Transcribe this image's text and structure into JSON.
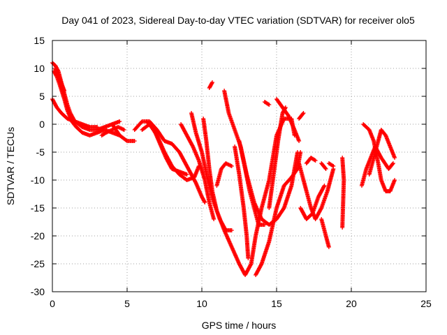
{
  "chart_data": {
    "type": "scatter",
    "title": "Day 041 of 2023, Sidereal Day-to-day VTEC variation (SDTVAR) for receiver olo5",
    "xlabel": "GPS time / hours",
    "ylabel": "SDTVAR / TECUs",
    "xlim": [
      0,
      25
    ],
    "ylim": [
      -30,
      15
    ],
    "xticks": [
      "0",
      "5",
      "10",
      "15",
      "20",
      "25"
    ],
    "yticks": [
      "-30",
      "-25",
      "-20",
      "-15",
      "-10",
      "-5",
      "0",
      "5",
      "10",
      "15"
    ],
    "grid": true,
    "marker": "plus",
    "color": "#ff0000",
    "series": [
      {
        "name": "trace-1",
        "points": [
          [
            0.0,
            11
          ],
          [
            0.2,
            10.5
          ],
          [
            0.4,
            9.5
          ],
          [
            0.6,
            7.5
          ],
          [
            0.8,
            5.5
          ],
          [
            1.0,
            3.5
          ],
          [
            1.2,
            2
          ],
          [
            1.5,
            0.5
          ],
          [
            2.0,
            -0.5
          ],
          [
            2.5,
            -1
          ],
          [
            3.0,
            -1
          ],
          [
            3.5,
            -0.5
          ],
          [
            4.0,
            0
          ],
          [
            4.5,
            0.5
          ]
        ]
      },
      {
        "name": "trace-2",
        "points": [
          [
            0.1,
            9.5
          ],
          [
            0.3,
            8.5
          ],
          [
            0.5,
            7
          ],
          [
            0.8,
            4.5
          ],
          [
            1.0,
            2.5
          ],
          [
            1.3,
            0.5
          ],
          [
            1.6,
            -0.5
          ],
          [
            2.0,
            -1.5
          ],
          [
            2.5,
            -2
          ],
          [
            3.0,
            -1.5
          ],
          [
            3.5,
            -1
          ],
          [
            4.0,
            -1.5
          ],
          [
            4.5,
            -2
          ]
        ]
      },
      {
        "name": "trace-3",
        "points": [
          [
            0.0,
            4.5
          ],
          [
            0.3,
            3
          ],
          [
            0.6,
            2
          ],
          [
            1.0,
            1
          ],
          [
            1.5,
            0.5
          ],
          [
            2.0,
            0
          ],
          [
            2.5,
            -0.5
          ],
          [
            3.0,
            -0.5
          ]
        ]
      },
      {
        "name": "trace-4",
        "points": [
          [
            0.2,
            10
          ],
          [
            0.5,
            8
          ],
          [
            0.8,
            6
          ]
        ]
      },
      {
        "name": "trace-5",
        "points": [
          [
            3.3,
            -2
          ],
          [
            3.6,
            -1.5
          ],
          [
            4.0,
            -1
          ],
          [
            4.4,
            -0.5
          ],
          [
            4.8,
            -1
          ]
        ]
      },
      {
        "name": "trace-6",
        "points": [
          [
            4.0,
            0
          ],
          [
            4.5,
            -2
          ],
          [
            5.0,
            -3
          ],
          [
            5.5,
            -3
          ]
        ]
      },
      {
        "name": "trace-7",
        "points": [
          [
            5.5,
            -1
          ],
          [
            6.0,
            0.5
          ],
          [
            6.5,
            0.5
          ],
          [
            7.0,
            -1
          ],
          [
            7.5,
            -3
          ],
          [
            8.0,
            -3.5
          ],
          [
            8.5,
            -5
          ],
          [
            9.0,
            -7.5
          ],
          [
            9.3,
            -9
          ],
          [
            9.6,
            -10.5
          ],
          [
            10.0,
            -13
          ],
          [
            10.2,
            -14
          ]
        ]
      },
      {
        "name": "trace-8",
        "points": [
          [
            6.0,
            -1
          ],
          [
            6.5,
            0
          ],
          [
            7.0,
            -2
          ],
          [
            7.5,
            -5
          ],
          [
            8.0,
            -7.5
          ],
          [
            8.5,
            -9
          ],
          [
            9.0,
            -10
          ],
          [
            9.5,
            -9.5
          ],
          [
            9.8,
            -7.5
          ]
        ]
      },
      {
        "name": "trace-9",
        "points": [
          [
            6.3,
            0.5
          ],
          [
            6.8,
            -1
          ],
          [
            7.2,
            -3.5
          ],
          [
            7.6,
            -6
          ],
          [
            8.0,
            -8
          ],
          [
            8.5,
            -8.5
          ],
          [
            9.0,
            -9
          ]
        ]
      },
      {
        "name": "trace-10",
        "points": [
          [
            8.6,
            0
          ],
          [
            9.0,
            -2
          ],
          [
            9.4,
            -4
          ],
          [
            9.8,
            -6.5
          ],
          [
            10.2,
            -10
          ],
          [
            10.5,
            -14
          ],
          [
            10.8,
            -17
          ]
        ]
      },
      {
        "name": "trace-11",
        "points": [
          [
            9.3,
            2
          ],
          [
            9.6,
            -1.5
          ],
          [
            10.0,
            -5
          ],
          [
            10.4,
            -10
          ],
          [
            10.8,
            -14
          ],
          [
            11.2,
            -17
          ],
          [
            11.6,
            -19
          ],
          [
            12.0,
            -19
          ]
        ]
      },
      {
        "name": "trace-12",
        "points": [
          [
            10.1,
            1
          ],
          [
            10.3,
            -3
          ],
          [
            10.5,
            -8
          ],
          [
            10.7,
            -12
          ],
          [
            11.0,
            -15.5
          ],
          [
            11.5,
            -19
          ],
          [
            12.0,
            -22
          ],
          [
            12.5,
            -25
          ],
          [
            12.9,
            -27
          ],
          [
            13.3,
            -25
          ],
          [
            13.6,
            -20
          ],
          [
            14.0,
            -15
          ],
          [
            14.5,
            -10
          ],
          [
            15.0,
            -2
          ],
          [
            15.5,
            1
          ],
          [
            16.0,
            1
          ],
          [
            16.2,
            -2
          ]
        ]
      },
      {
        "name": "trace-13",
        "points": [
          [
            10.5,
            6.5
          ],
          [
            10.7,
            7.5
          ]
        ]
      },
      {
        "name": "trace-14",
        "points": [
          [
            11.0,
            -11
          ],
          [
            11.3,
            -8
          ],
          [
            11.6,
            -7
          ],
          [
            12.0,
            -7.5
          ]
        ]
      },
      {
        "name": "trace-15",
        "points": [
          [
            11.5,
            6
          ],
          [
            11.8,
            2
          ],
          [
            12.2,
            -1
          ],
          [
            12.6,
            -4
          ],
          [
            13.0,
            -9
          ],
          [
            13.5,
            -14
          ],
          [
            14.0,
            -17
          ],
          [
            14.5,
            -18
          ],
          [
            15.0,
            -17
          ],
          [
            15.5,
            -15
          ],
          [
            16.0,
            -11
          ],
          [
            16.4,
            -5
          ]
        ]
      },
      {
        "name": "trace-16",
        "points": [
          [
            12.2,
            -4
          ],
          [
            12.5,
            -9
          ],
          [
            12.8,
            -15
          ],
          [
            13.0,
            -20
          ],
          [
            13.1,
            -24
          ]
        ]
      },
      {
        "name": "trace-17",
        "points": [
          [
            12.5,
            -3
          ],
          [
            12.9,
            -8
          ],
          [
            13.2,
            -12
          ],
          [
            13.5,
            -15
          ],
          [
            13.8,
            -18
          ],
          [
            14.2,
            -18
          ]
        ]
      },
      {
        "name": "trace-18",
        "points": [
          [
            13.6,
            -27
          ],
          [
            14.0,
            -25
          ],
          [
            14.5,
            -21
          ],
          [
            15.0,
            -15
          ],
          [
            15.5,
            -11
          ],
          [
            16.0,
            -9.5
          ],
          [
            16.4,
            -8
          ],
          [
            16.6,
            -5
          ]
        ]
      },
      {
        "name": "trace-19",
        "points": [
          [
            14.5,
            -15
          ],
          [
            14.8,
            -9
          ],
          [
            15.1,
            -3
          ],
          [
            15.4,
            2
          ],
          [
            15.6,
            3
          ]
        ]
      },
      {
        "name": "trace-20",
        "points": [
          [
            15.0,
            4.5
          ],
          [
            15.4,
            3
          ],
          [
            15.8,
            1.5
          ],
          [
            16.2,
            -1
          ],
          [
            16.5,
            -3
          ]
        ]
      },
      {
        "name": "trace-21",
        "points": [
          [
            14.2,
            4
          ],
          [
            14.5,
            3.5
          ]
        ]
      },
      {
        "name": "trace-22",
        "points": [
          [
            16.5,
            1
          ],
          [
            16.8,
            2
          ]
        ]
      },
      {
        "name": "trace-23",
        "points": [
          [
            16.5,
            -7
          ],
          [
            16.8,
            -10
          ],
          [
            17.0,
            -12
          ],
          [
            17.3,
            -15
          ],
          [
            17.6,
            -17
          ],
          [
            18.0,
            -15
          ],
          [
            18.4,
            -12
          ],
          [
            18.6,
            -10
          ],
          [
            18.8,
            -8
          ]
        ]
      },
      {
        "name": "trace-24",
        "points": [
          [
            16.6,
            -15
          ],
          [
            17.0,
            -17
          ],
          [
            17.4,
            -16
          ],
          [
            17.8,
            -13
          ],
          [
            18.2,
            -11
          ]
        ]
      },
      {
        "name": "trace-25",
        "points": [
          [
            17.0,
            -7
          ],
          [
            17.3,
            -6
          ],
          [
            17.6,
            -6.5
          ]
        ]
      },
      {
        "name": "trace-26",
        "points": [
          [
            18.0,
            -17
          ],
          [
            18.3,
            -20
          ],
          [
            18.5,
            -22
          ]
        ]
      },
      {
        "name": "trace-27",
        "points": [
          [
            18.5,
            -7
          ],
          [
            18.8,
            -7.5
          ]
        ]
      },
      {
        "name": "trace-28",
        "points": [
          [
            18.0,
            -7
          ],
          [
            18.3,
            -8
          ]
        ]
      },
      {
        "name": "trace-29",
        "points": [
          [
            19.4,
            -6
          ],
          [
            19.5,
            -10
          ],
          [
            19.4,
            -18.5
          ]
        ]
      },
      {
        "name": "trace-30",
        "points": [
          [
            20.7,
            -11
          ],
          [
            21.0,
            -8
          ],
          [
            21.3,
            -6
          ],
          [
            21.6,
            -4
          ],
          [
            22.0,
            -6
          ],
          [
            22.5,
            -8
          ],
          [
            22.8,
            -7
          ]
        ]
      },
      {
        "name": "trace-31",
        "points": [
          [
            20.8,
            0
          ],
          [
            21.2,
            -1
          ],
          [
            21.5,
            -3
          ],
          [
            21.8,
            -7
          ],
          [
            22.0,
            -10
          ],
          [
            22.3,
            -12
          ],
          [
            22.6,
            -12
          ],
          [
            22.9,
            -10
          ]
        ]
      },
      {
        "name": "trace-32",
        "points": [
          [
            21.2,
            -9
          ],
          [
            21.5,
            -6
          ],
          [
            21.8,
            -3
          ],
          [
            22.0,
            -1
          ],
          [
            22.3,
            -2
          ],
          [
            22.6,
            -4
          ],
          [
            22.9,
            -6
          ]
        ]
      }
    ]
  }
}
